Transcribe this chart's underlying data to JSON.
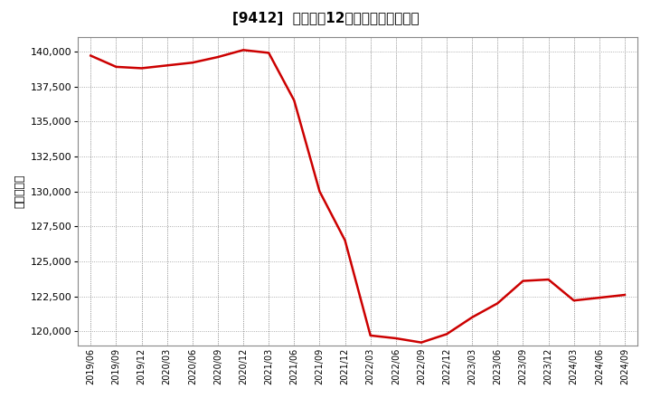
{
  "title": "[9412]  売上高の12か月移動合計の推移",
  "ylabel": "（百万円）",
  "line_color": "#cc0000",
  "bg_color": "#ffffff",
  "plot_bg_color": "#ffffff",
  "grid_color": "#999999",
  "ylim": [
    119000,
    141000
  ],
  "yticks": [
    120000,
    122500,
    125000,
    127500,
    130000,
    132500,
    135000,
    137500,
    140000
  ],
  "dates": [
    "2019/06",
    "2019/09",
    "2019/12",
    "2020/03",
    "2020/06",
    "2020/09",
    "2020/12",
    "2021/03",
    "2021/06",
    "2021/09",
    "2021/12",
    "2022/03",
    "2022/06",
    "2022/09",
    "2022/12",
    "2023/03",
    "2023/06",
    "2023/09",
    "2023/12",
    "2024/03",
    "2024/06",
    "2024/09"
  ],
  "values": [
    139700,
    138900,
    138800,
    139000,
    139200,
    139600,
    140100,
    139900,
    136500,
    130000,
    126500,
    119700,
    119500,
    119200,
    119800,
    121000,
    122000,
    123600,
    123700,
    122200,
    122400,
    122600
  ]
}
